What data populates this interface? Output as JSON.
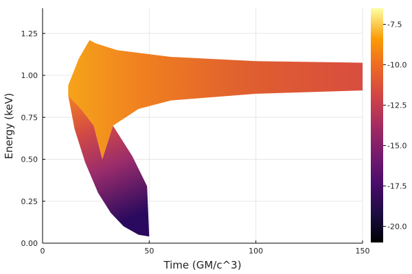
{
  "chart_data": {
    "type": "heatmap",
    "xlabel": "Time (GM/c^3)",
    "ylabel": "Energy (keV)",
    "xlim": [
      0,
      150
    ],
    "ylim": [
      0,
      1.4
    ],
    "x_ticks": [
      "0",
      "50",
      "100",
      "150"
    ],
    "y_ticks": [
      "0.00",
      "0.25",
      "0.50",
      "0.75",
      "1.00",
      "1.25"
    ],
    "grid": true,
    "colorbar": {
      "colormap": "inferno",
      "range": [
        -21,
        -6.5
      ],
      "ticks": [
        "-7.5",
        "-10.0",
        "-12.5",
        "-15.0",
        "-17.5",
        "-20.0"
      ]
    },
    "regions": [
      {
        "name": "upper band",
        "outline": [
          [
            12,
            0.94
          ],
          [
            17,
            1.1
          ],
          [
            22,
            1.21
          ],
          [
            25,
            1.19
          ],
          [
            35,
            1.15
          ],
          [
            60,
            1.11
          ],
          [
            100,
            1.085
          ],
          [
            150,
            1.075
          ],
          [
            150,
            0.91
          ],
          [
            100,
            0.89
          ],
          [
            60,
            0.85
          ],
          [
            45,
            0.8
          ],
          [
            33,
            0.7
          ],
          [
            28,
            0.5
          ],
          [
            24,
            0.7
          ],
          [
            18,
            0.8
          ],
          [
            12,
            0.88
          ]
        ],
        "fill": [
          "#f6a31a",
          "#d84d3e"
        ]
      },
      {
        "name": "lower tail",
        "outline": [
          [
            12,
            0.88
          ],
          [
            18,
            0.8
          ],
          [
            24,
            0.7
          ],
          [
            28,
            0.5
          ],
          [
            33,
            0.7
          ],
          [
            42,
            0.52
          ],
          [
            49,
            0.34
          ],
          [
            50,
            0.04
          ],
          [
            45,
            0.05
          ],
          [
            38,
            0.1
          ],
          [
            32,
            0.18
          ],
          [
            26,
            0.3
          ],
          [
            20,
            0.48
          ],
          [
            15,
            0.68
          ]
        ],
        "fill": [
          "#e55c30",
          "#2a0a5e"
        ]
      }
    ]
  }
}
